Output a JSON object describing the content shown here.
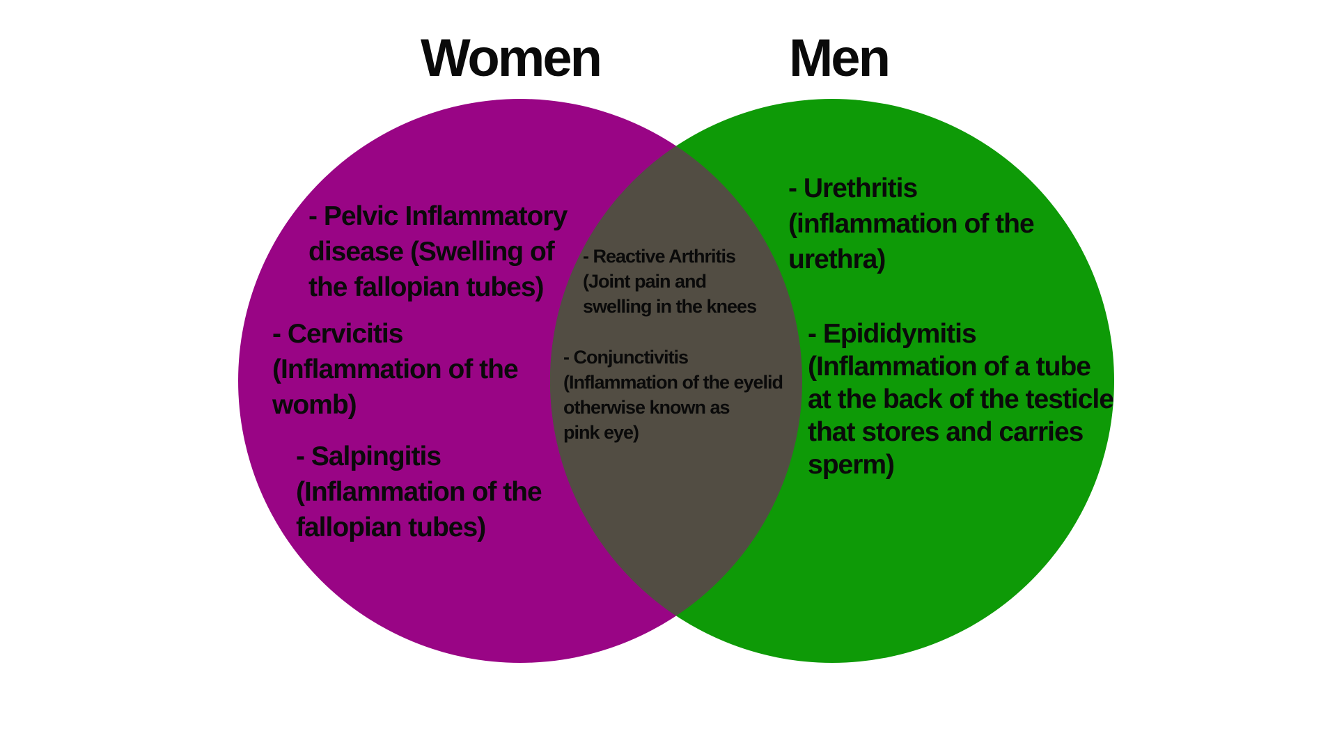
{
  "colors": {
    "women_circle": "#990585",
    "men_circle": "#0e9a07",
    "overlap": "#524d43",
    "text": "#0a0a0a",
    "background": "#ffffff"
  },
  "venn": {
    "women_title": "Women",
    "men_title": "Men",
    "women_only": [
      [
        "- Pelvic Inflammatory",
        "disease (Swelling of",
        "the fallopian tubes)"
      ],
      [
        "- Cervicitis",
        "(Inflammation of the",
        "womb)"
      ],
      [
        "- Salpingitis",
        "(Inflammation of the",
        "fallopian tubes)"
      ]
    ],
    "shared": [
      [
        "- Reactive Arthritis",
        "(Joint pain and",
        "swelling in the knees"
      ],
      [
        "- Conjunctivitis",
        "(Inflammation of the eyelid",
        "otherwise known as",
        "pink eye)"
      ]
    ],
    "men_only": [
      [
        "- Urethritis",
        "(inflammation of the",
        "urethra)"
      ],
      [
        "- Epididymitis",
        "(Inflammation of a tube",
        "at the back of the testicle",
        "that stores and carries",
        "sperm)"
      ]
    ]
  }
}
